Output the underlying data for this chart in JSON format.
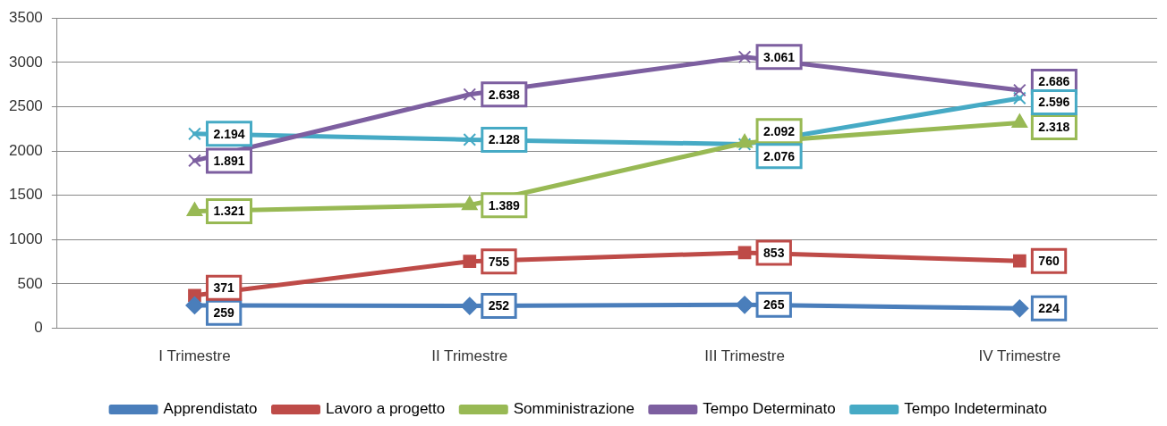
{
  "chart_data": {
    "type": "line",
    "categories": [
      "I Trimestre",
      "II Trimestre",
      "III Trimestre",
      "IV Trimestre"
    ],
    "series": [
      {
        "name": "Apprendistato",
        "color": "#4a7ebb",
        "marker": "diamond",
        "values": [
          259,
          252,
          265,
          224
        ],
        "value_labels": [
          "259",
          "252",
          "265",
          "224"
        ]
      },
      {
        "name": "Lavoro a progetto",
        "color": "#be4b48",
        "marker": "square",
        "values": [
          371,
          755,
          853,
          760
        ],
        "value_labels": [
          "371",
          "755",
          "853",
          "760"
        ]
      },
      {
        "name": "Somministrazione",
        "color": "#98b954",
        "marker": "triangle",
        "values": [
          1321,
          1389,
          2092,
          2318
        ],
        "value_labels": [
          "1.321",
          "1.389",
          "2.092",
          "2.318"
        ]
      },
      {
        "name": "Tempo Determinato",
        "color": "#7d5fa0",
        "marker": "cross",
        "values": [
          1891,
          2638,
          3061,
          2686
        ],
        "value_labels": [
          "1.891",
          "2.638",
          "3.061",
          "2.686"
        ]
      },
      {
        "name": "Tempo Indeterminato",
        "color": "#46aac5",
        "marker": "cross",
        "values": [
          2194,
          2128,
          2076,
          2596
        ],
        "value_labels": [
          "2.194",
          "2.128",
          "2.076",
          "2.596"
        ]
      }
    ],
    "ylim": [
      0,
      3500
    ],
    "yticks": [
      0,
      500,
      1000,
      1500,
      2000,
      2500,
      3000,
      3500
    ],
    "grid": "y",
    "legend": "bottom"
  }
}
